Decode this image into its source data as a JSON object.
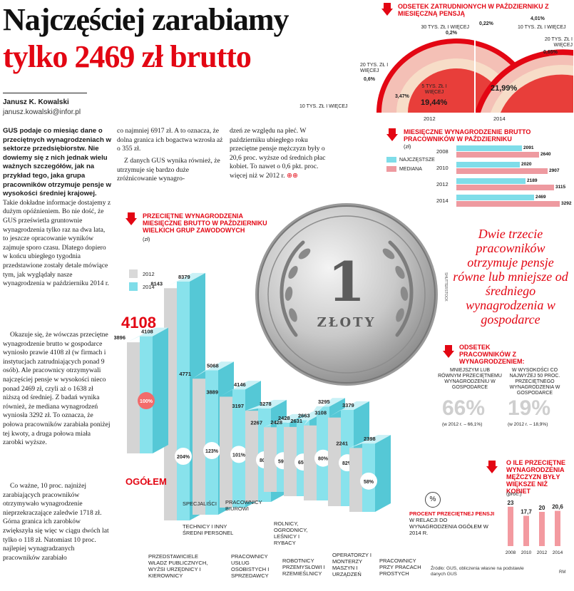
{
  "headline": {
    "line1": "Najczęściej zarabiamy",
    "line2": "tylko 2469 zł brutto"
  },
  "byline": {
    "author": "Janusz K. Kowalski",
    "email": "janusz.kowalski@infor.pl"
  },
  "article": {
    "col1_lead": "GUS podaje co miesiąc dane o przeciętnych wynagrodzeniach w sektorze przedsiębiorstw. Nie dowiemy się z nich jednak wielu ważnych szczegółów, jak na przykład tego, jaka grupa pracowników otrzymuje pensje w wysokości średniej krajowej.",
    "col1_text": " Takie dokładne informacje dostajemy z dużym opóźnieniem. Bo nie dość, że GUS prześwietla gruntownie wynagrodzenia tylko raz na dwa lata, to jeszcze opracowanie wyników zajmuje sporo czasu. Dlatego dopiero w końcu ubiegłego tygodnia przedstawione zostały detale mówiące tym, jak wyglądały nasze wynagrodzenia w październiku 2014 r.",
    "col1_p2": "Okazuje się, że wówczas przeciętne wynagrodzenie brutto w gospodarce wyniosło prawie 4108 zł (w firmach i instytucjach zatrudniających ponad 9 osób). Ale pracownicy otrzymywali najczęściej pensje w wysokości nieco ponad 2469 zł, czyli aż o 1638 zł niższą od średniej. Z badań wynika również, że mediana wynagrodzeń wyniosła 3292 zł. To oznacza, że połowa pracowników zarabiała poniżej tej kwoty, a druga połowa miała zarobki wyższe.",
    "col1_p3": "Co ważne, 10 proc. najniżej zarabiających pracowników otrzymywało wynagrodzenie nieprzekraczające zaledwie 1718 zł. Górna granica ich zarobków zwiększyła się więc w ciągu dwóch lat tylko o 118 zł. Natomiast 10 proc. najlepiej wynagradzanych pracowników zarabiało",
    "col2_text": "co najmniej 6917 zł. A to oznacza, że dolna granica ich bogactwa wzrosła aż o 355 zł.",
    "col2_p2": "Z danych GUS wynika również, że utrzymuje się bardzo duże zróżnicowanie wynagro-",
    "col3_text": "dzeń ze względu na płeć. W październiku ubiegłego roku przeciętne pensje mężczyzn były o 20,6 proc. wyższe od średnich płac kobiet. To nawet o 0,6 pkt. proc. więcej niż w 2012 r.",
    "col3_end": "⊕⊕"
  },
  "semicircle": {
    "title": "ODSETEK ZATRUDNIONYCH W PAŹDZIERNIKU Z MIESIĘCZNĄ PENSJĄ",
    "years": [
      "2012",
      "2014"
    ],
    "left": {
      "p30": "0,2%",
      "l30": "30 TYS. ZŁ I WIĘCEJ",
      "p20": "0,6%",
      "l20": "20 TYS. ZŁ I WIĘCEJ",
      "p10": "3,47%",
      "l10": "10 TYS. ZŁ I WIĘCEJ",
      "p5": "19,44%",
      "l5": "5 TYS. ZŁ I WIĘCEJ"
    },
    "right": {
      "p30": "0,22%",
      "p10": "4,01%",
      "l10": "10 TYS. ZŁ I WIĘCEJ",
      "l20": "20 TYS. ZŁ I WIĘCEJ",
      "p20": "0,65%",
      "p5": "21,99%"
    },
    "colors": {
      "outer": "#e30613",
      "mid": "#f4b6b2",
      "inner": "#f7d9c4"
    }
  },
  "hbar": {
    "title": "MIESIĘCZNE WYNAGRODZENIE BRUTTO PRACOWNIKÓW W PAŹDZIERNIKU",
    "unit": "(zł)",
    "legend": [
      "NAJCZĘSTSZE",
      "MEDIANA"
    ],
    "colors": [
      "#7fdde9",
      "#ee9aa0"
    ],
    "rows": [
      {
        "year": "2008",
        "a": "2091",
        "b": "2640"
      },
      {
        "year": "2010",
        "a": "2020",
        "b": "2907"
      },
      {
        "year": "2012",
        "a": "2189",
        "b": "3115"
      },
      {
        "year": "2014",
        "a": "2469",
        "b": "3292"
      }
    ]
  },
  "chart_data": {
    "type": "bar",
    "title": "PRZECIĘTNE WYNAGRODZENIA MIESIĘCZNE BRUTTO W PAŹDZIERNIKU WIELKICH GRUP ZAWODOWYCH",
    "unit": "(zł)",
    "legend": [
      "2012",
      "2014"
    ],
    "categories": [
      "OGÓŁEM",
      "SPECJALIŚCI",
      "TECHNICY I INNY ŚREDNI PERSONEL",
      "PRACOWNICY BIUROWI",
      "PRACOWNICY USŁUG OSOBISTYCH I SPRZEDAWCY",
      "ROLNICY, OGRODNICY, LEŚNICY I RYBACY",
      "ROBOTNICY PRZEMYSŁOWI I RZEMIEŚLNICY",
      "OPERATORZY I MONTERZY MASZYN I URZĄDZEŃ",
      "PRACOWNICY PRZY PRACACH PROSTYCH",
      "PRZEDSTAWICIELE WŁADZ PUBLICZNYCH, WYŻSI URZĘDNICY I KIEROWNICY"
    ],
    "series": [
      {
        "name": "2012",
        "values": [
          3896,
          4771,
          3889,
          3197,
          2267,
          2428,
          2631,
          3108,
          2241,
          8143
        ]
      },
      {
        "name": "2014",
        "values": [
          4108,
          5068,
          4146,
          3278,
          2428,
          2663,
          3295,
          3379,
          2398,
          8379
        ]
      }
    ],
    "percent_of_average": [
      "100%",
      "123%",
      "101%",
      "80%",
      "59%",
      "65%",
      "80%",
      "82%",
      "58%",
      "204%"
    ],
    "highlight": "4108"
  },
  "bigbar": {
    "ogolem": "OGÓŁEM",
    "pct_label": "%",
    "pct_note_bold": "PROCENT PRZECIĘTNEJ PENSJI",
    "pct_note": " W RELACJI DO WYNAGRODZENIA OGÓŁEM W 2014 R."
  },
  "coin": {
    "value": "1",
    "word": "ZŁOTY",
    "credit": "SHUTTERSTOCK"
  },
  "quote": "Dwie trzecie pracowników otrzymuje pensje równe lub mniejsze od średniego wynagrodzenia w gospodarce",
  "share": {
    "title": "ODSETEK PRACOWNIKÓW Z WYNAGRODZENIEM:",
    "l_label": "MNIEJSZYM LUB RÓWNYM PRZECIĘTNEMU WYNAGRODZENIU W GOSPODARCE",
    "l_value": "66%",
    "l_note": "(w 2012 r. – 66,1%)",
    "r_label": "W WYSOKOŚCI CO NAJWYŻEJ 50 PROC. PRZECIĘTNEGO WYNAGRODZENIA W GOSPODARCE",
    "r_value": "19%",
    "r_note": "(w 2012 r. – 18,9%)"
  },
  "gap": {
    "title": "O ILE PRZECIĘTNE WYNAGRODZENIA MĘŻCZYZN BYŁY WIĘKSZE NIŻ KOBIET",
    "unit": "(proc.)",
    "years": [
      "2008",
      "2010",
      "2012",
      "2014"
    ],
    "values": [
      23,
      17.7,
      20,
      20.6
    ],
    "labels": [
      "23",
      "17,7",
      "20",
      "20,6"
    ]
  },
  "source": "Źródło: GUS, obliczenia własne na podstawie danych GUS",
  "sign": "RM"
}
